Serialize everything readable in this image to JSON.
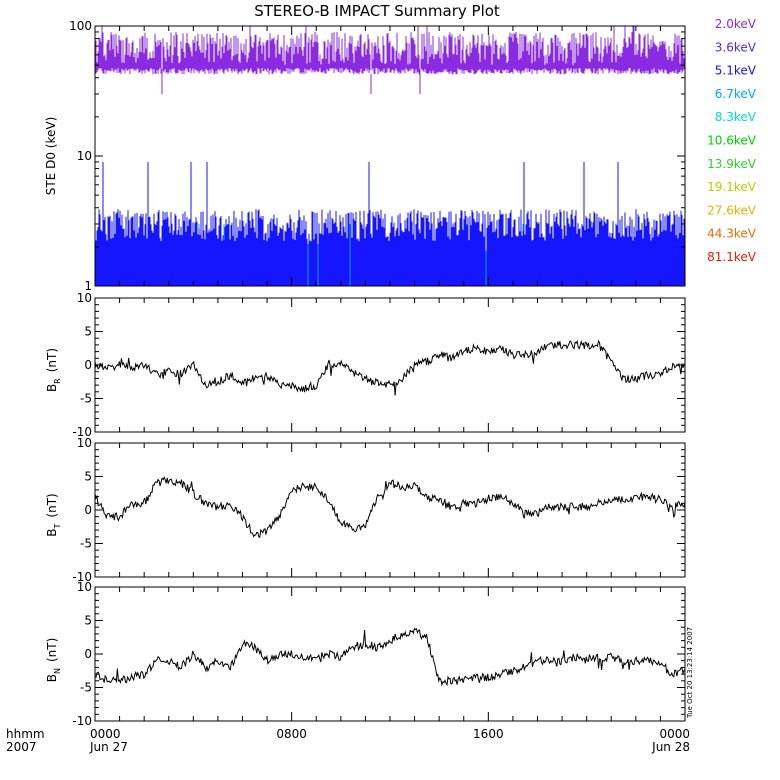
{
  "chart_data": [
    {
      "type": "line",
      "title": "STEREO-B IMPACT Summary Plot",
      "ylabel": "STE D0 (keV)",
      "yscale": "log",
      "ylim": [
        1,
        100
      ],
      "yticks": [
        1,
        10,
        100
      ],
      "ytick_labels": [
        "1",
        "10",
        "100"
      ],
      "grid": false,
      "legend_position": "right-outside",
      "series": [
        {
          "name": "2.0keV",
          "color": "#8a2be2",
          "min": 30,
          "typical_low": 50,
          "typical_high": 90,
          "max": 100
        },
        {
          "name": "3.6keV",
          "color": "#4b2bd8",
          "min": 1,
          "typical_low": 1,
          "typical_high": 1,
          "max": 1
        },
        {
          "name": "5.1keV",
          "color": "#1515ff",
          "min": 1,
          "typical_low": 2.2,
          "typical_high": 3.9,
          "max": 9
        },
        {
          "name": "6.7keV",
          "color": "#00a6ff",
          "min": 1,
          "typical_low": 1.8,
          "typical_high": 2.2,
          "max": 3
        },
        {
          "name": "8.3keV",
          "color": "#00e0d0",
          "min": 1,
          "typical_low": 1.4,
          "typical_high": 2.0,
          "max": 2
        },
        {
          "name": "10.6keV",
          "color": "#00d000",
          "min": 1,
          "typical_low": 1,
          "typical_high": 1.9,
          "max": 2
        },
        {
          "name": "13.9keV",
          "color": "#30d030",
          "min": 1,
          "typical_low": 1,
          "typical_high": 1.9,
          "max": 2
        },
        {
          "name": "19.1keV",
          "color": "#b5d000",
          "min": 1,
          "typical_low": 1,
          "typical_high": 1.9,
          "max": 2
        },
        {
          "name": "27.6keV",
          "color": "#e8b000",
          "min": 1,
          "typical_low": 1,
          "typical_high": 1.9,
          "max": 2
        },
        {
          "name": "44.3keV",
          "color": "#e07000",
          "min": 1,
          "typical_low": 1,
          "typical_high": 1.9,
          "max": 2
        },
        {
          "name": "81.1keV",
          "color": "#e02000",
          "min": 1,
          "typical_low": 1,
          "typical_high": 1.9,
          "max": 2
        }
      ]
    },
    {
      "type": "line",
      "ylabel_base": "B",
      "ylabel_sub": "R",
      "ylabel_unit": "(nT)",
      "ylim": [
        -10,
        10
      ],
      "yticks": [
        -10,
        -5,
        0,
        5,
        10
      ],
      "ytick_labels": [
        "-10",
        "-5",
        "0",
        "5",
        "10"
      ],
      "x_hours": [
        0,
        0.5,
        1,
        1.5,
        2,
        2.5,
        3,
        3.5,
        4,
        4.5,
        5,
        5.5,
        6,
        6.5,
        7,
        7.5,
        8,
        8.5,
        9,
        9.5,
        10,
        10.5,
        11,
        11.5,
        12,
        12.5,
        13,
        13.5,
        14,
        14.5,
        15,
        15.5,
        16,
        16.5,
        17,
        17.5,
        18,
        18.5,
        19,
        19.5,
        20,
        20.5,
        21,
        21.5,
        22,
        22.5,
        23,
        23.5,
        24
      ],
      "values": [
        0,
        -0.5,
        0,
        -0.3,
        0,
        -1.5,
        -1,
        -1.2,
        0,
        -3,
        -2.5,
        -1.5,
        -2.5,
        -2,
        -1.5,
        -3,
        -3,
        -3.5,
        -3,
        0,
        0.5,
        -1,
        -2,
        -2.5,
        -3,
        -2,
        0,
        0.5,
        1.5,
        1,
        2,
        2.5,
        2,
        2.5,
        1.5,
        1.5,
        2,
        3,
        3,
        3,
        3,
        3,
        0.5,
        -2,
        -2,
        -1.5,
        -1.5,
        0,
        0
      ]
    },
    {
      "type": "line",
      "ylabel_base": "B",
      "ylabel_sub": "T",
      "ylabel_unit": "(nT)",
      "ylim": [
        -10,
        10
      ],
      "yticks": [
        -10,
        -5,
        0,
        5,
        10
      ],
      "ytick_labels": [
        "-10",
        "-5",
        "0",
        "5",
        "10"
      ],
      "x_hours": [
        0,
        0.5,
        1,
        1.5,
        2,
        2.5,
        3,
        3.5,
        4,
        4.5,
        5,
        5.5,
        6,
        6.5,
        7,
        7.5,
        8,
        8.5,
        9,
        9.5,
        10,
        10.5,
        11,
        11.5,
        12,
        12.5,
        13,
        13.5,
        14,
        14.5,
        15,
        15.5,
        16,
        16.5,
        17,
        17.5,
        18,
        18.5,
        19,
        19.5,
        20,
        20.5,
        21,
        21.5,
        22,
        22.5,
        23,
        23.5,
        24
      ],
      "values": [
        2,
        -1,
        -1,
        1,
        1,
        4,
        4.5,
        4,
        2.5,
        1,
        0.5,
        0.5,
        -1,
        -4,
        -3,
        -1,
        3,
        3.5,
        3.5,
        1.5,
        -2,
        -3,
        -2.5,
        2,
        4,
        3.5,
        3.5,
        2,
        1.5,
        0.5,
        1,
        1,
        1.5,
        2,
        1,
        -0.5,
        -0.5,
        0.5,
        0.5,
        0.5,
        0.5,
        1,
        1.5,
        1.5,
        2,
        2,
        1.5,
        0.5,
        1
      ]
    },
    {
      "type": "line",
      "ylabel_base": "B",
      "ylabel_sub": "N",
      "ylabel_unit": "(nT)",
      "ylim": [
        -10,
        10
      ],
      "yticks": [
        -10,
        -5,
        0,
        5,
        10
      ],
      "ytick_labels": [
        "-10",
        "-5",
        "0",
        "5",
        "10"
      ],
      "x_hours": [
        0,
        0.5,
        1,
        1.5,
        2,
        2.5,
        3,
        3.5,
        4,
        4.5,
        5,
        5.5,
        6,
        6.5,
        7,
        7.5,
        8,
        8.5,
        9,
        9.5,
        10,
        10.5,
        11,
        11.5,
        12,
        12.5,
        13,
        13.5,
        14,
        14.5,
        15,
        15.5,
        16,
        16.5,
        17,
        17.5,
        18,
        18.5,
        19,
        19.5,
        20,
        20.5,
        21,
        21.5,
        22,
        22.5,
        23,
        23.5,
        24
      ],
      "values": [
        -3,
        -4,
        -4,
        -3.5,
        -3,
        -1,
        -1,
        -2,
        0,
        -2,
        -1,
        -2,
        1.5,
        1,
        -1,
        0,
        0,
        -0.5,
        -0.5,
        0,
        -0.5,
        1,
        1.5,
        1,
        2,
        3,
        3.5,
        2.5,
        -4,
        -4,
        -4,
        -3.5,
        -3.5,
        -3,
        -2.5,
        -2,
        -1,
        -1,
        -1,
        -0.5,
        -0.5,
        -0.5,
        -0.5,
        -1,
        -1,
        -1,
        -1.5,
        -3,
        -2.5
      ]
    }
  ],
  "x_axis": {
    "ticks": [
      {
        "hour": 0,
        "line1": "0000",
        "line2": "Jun 27"
      },
      {
        "hour": 8,
        "line1": "0800",
        "line2": ""
      },
      {
        "hour": 16,
        "line1": "1600",
        "line2": ""
      },
      {
        "hour": 24,
        "line1": "0000",
        "line2": "Jun 28"
      }
    ],
    "row_label_1": "hhmm",
    "row_label_2": "2007"
  },
  "timestamp": "Tue Oct 20 13:23:14 2007"
}
